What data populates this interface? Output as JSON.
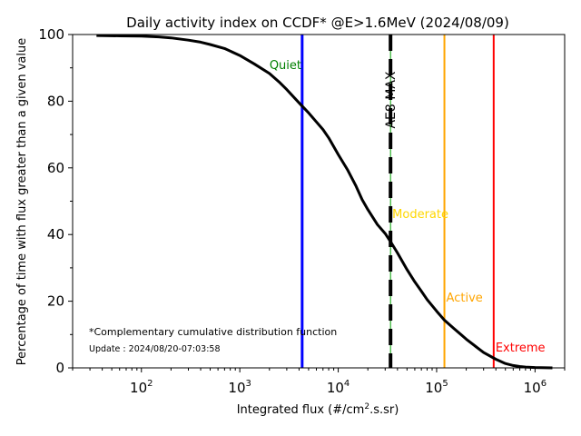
{
  "chart_data": {
    "type": "line",
    "title": "Daily activity index on CCDF* @E>1.6MeV (2024/08/09)",
    "xlabel_main": "Integrated flux (#/cm",
    "xlabel_sup": "2",
    "xlabel_end": ".s.sr)",
    "ylabel": "Percentage of time with flux greater than a given value",
    "x_scale": "log",
    "xlim": [
      20,
      2000000
    ],
    "ylim": [
      0,
      100
    ],
    "x_ticks": [
      {
        "value": 100,
        "base": "10",
        "exp": "2"
      },
      {
        "value": 1000,
        "base": "10",
        "exp": "3"
      },
      {
        "value": 10000,
        "base": "10",
        "exp": "4"
      },
      {
        "value": 100000,
        "base": "10",
        "exp": "5"
      },
      {
        "value": 1000000,
        "base": "10",
        "exp": "6"
      }
    ],
    "y_ticks": [
      0,
      20,
      40,
      60,
      80,
      100
    ],
    "grid": false,
    "series": [
      {
        "color": "#000000",
        "points": [
          [
            35,
            99.7
          ],
          [
            60,
            99.6
          ],
          [
            100,
            99.5
          ],
          [
            150,
            99.3
          ],
          [
            200,
            99.0
          ],
          [
            300,
            98.3
          ],
          [
            400,
            97.7
          ],
          [
            500,
            97.0
          ],
          [
            700,
            95.8
          ],
          [
            1000,
            93.7
          ],
          [
            1400,
            91.2
          ],
          [
            2000,
            88.3
          ],
          [
            2500,
            85.8
          ],
          [
            3000,
            83.5
          ],
          [
            4000,
            79.5
          ],
          [
            5000,
            76.5
          ],
          [
            6000,
            73.8
          ],
          [
            7000,
            71.5
          ],
          [
            8000,
            69.0
          ],
          [
            10000,
            64.0
          ],
          [
            12500,
            59.3
          ],
          [
            15000,
            54.8
          ],
          [
            17500,
            50.5
          ],
          [
            20000,
            47.5
          ],
          [
            25000,
            43.0
          ],
          [
            30000,
            40.3
          ],
          [
            35000,
            37.3
          ],
          [
            40000,
            34.5
          ],
          [
            50000,
            29.5
          ],
          [
            60000,
            25.8
          ],
          [
            70000,
            23.0
          ],
          [
            80000,
            20.5
          ],
          [
            100000,
            17.0
          ],
          [
            120000,
            14.3
          ],
          [
            150000,
            11.8
          ],
          [
            200000,
            8.6
          ],
          [
            250000,
            6.4
          ],
          [
            300000,
            4.6
          ],
          [
            400000,
            2.6
          ],
          [
            500000,
            1.3
          ],
          [
            600000,
            0.7
          ],
          [
            700000,
            0.4
          ],
          [
            800000,
            0.25
          ],
          [
            1000000,
            0.1
          ],
          [
            1500000,
            0.0
          ]
        ]
      }
    ],
    "thresholds": [
      {
        "name": "Quiet",
        "x": 4300,
        "color": "#0000ff",
        "label_color": "#008000",
        "dashed": false
      },
      {
        "name": "Moderate",
        "x": 34000,
        "color": "#ffd700",
        "label_color": "#ffd700",
        "dashed": false
      },
      {
        "name": "Active",
        "x": 120000,
        "color": "#ffa500",
        "label_color": "#ffa500",
        "dashed": false
      },
      {
        "name": "Extreme",
        "x": 380000,
        "color": "#ff0000",
        "label_color": "#ff0000",
        "dashed": false
      }
    ],
    "ae8_line": {
      "label": "AE8 MAX",
      "x": 34000,
      "color": "#000000",
      "inner_color": "#00a000"
    },
    "footnote": "*Complementary cumulative distribution function",
    "update": "Update : 2024/08/20-07:03:58"
  }
}
